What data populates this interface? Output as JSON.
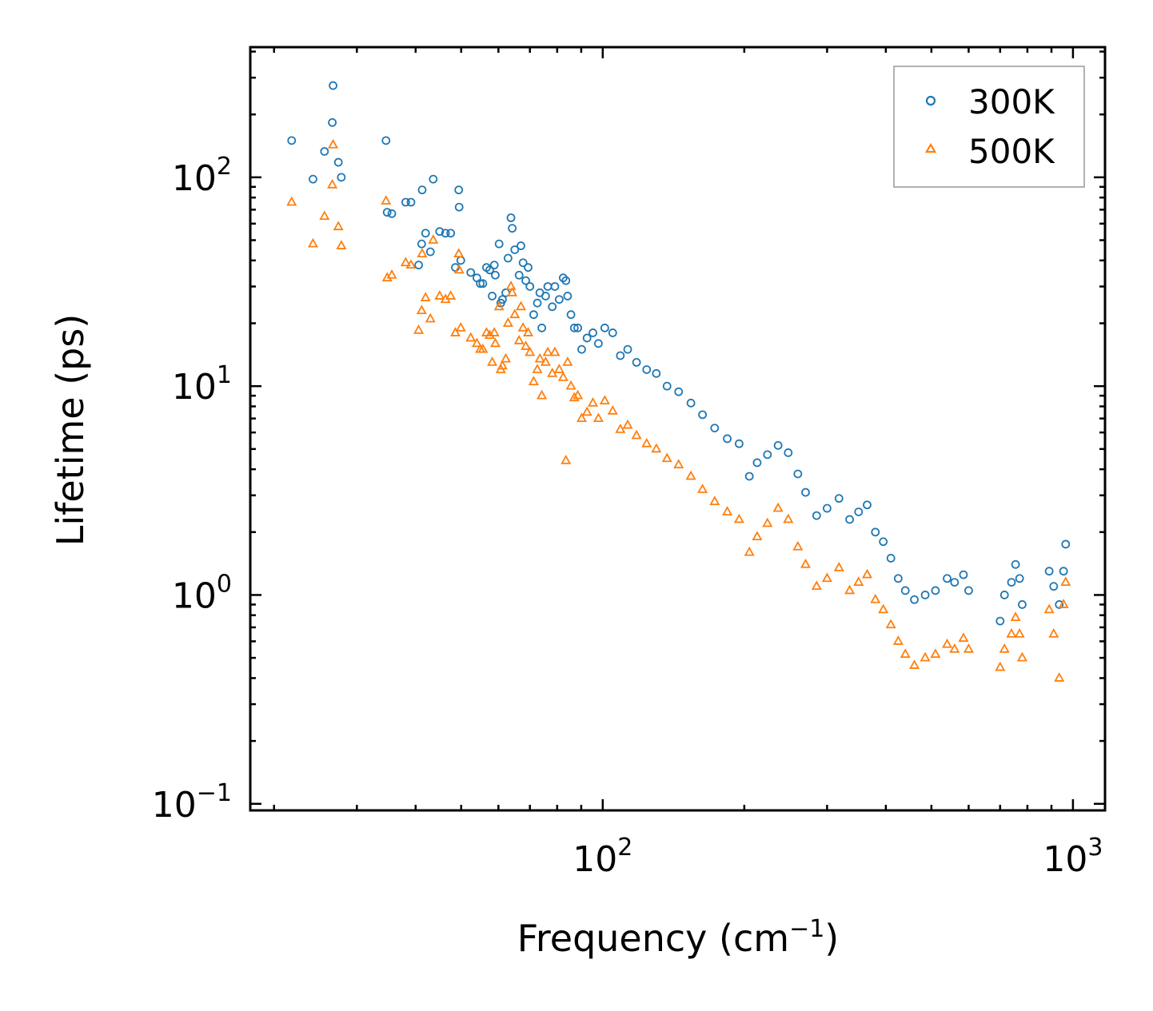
{
  "colors": {
    "series_300K": "#1f77b4",
    "series_500K": "#ff7f0e",
    "axes": "#000000",
    "legend_border": "#999999",
    "background": "#ffffff"
  },
  "chart_data": {
    "type": "scatter",
    "title": "",
    "xlabel_main": "Frequency (cm",
    "xlabel_sup": "−1",
    "xlabel_end": ")",
    "ylabel": "Lifetime (ps)",
    "xscale": "log",
    "yscale": "log",
    "xlim": [
      17.8,
      1170
    ],
    "ylim": [
      0.093,
      420
    ],
    "legend_position": "top-right",
    "x_ticks": [
      {
        "value": 100,
        "base": "10",
        "exp": "2"
      },
      {
        "value": 1000,
        "base": "10",
        "exp": "3"
      }
    ],
    "y_ticks": [
      {
        "value": 0.1,
        "base": "10",
        "exp": "−1"
      },
      {
        "value": 1,
        "base": "10",
        "exp": "0"
      },
      {
        "value": 10,
        "base": "10",
        "exp": "1"
      },
      {
        "value": 100,
        "base": "10",
        "exp": "2"
      }
    ],
    "series": [
      {
        "name": "300K",
        "marker": "circle",
        "color": "#1f77b4",
        "points": [
          [
            21.8,
            150
          ],
          [
            24.2,
            98
          ],
          [
            25.6,
            133
          ],
          [
            26.6,
            183
          ],
          [
            26.7,
            275
          ],
          [
            27.4,
            118
          ],
          [
            27.8,
            100
          ],
          [
            34.6,
            150
          ],
          [
            34.8,
            68
          ],
          [
            35.6,
            67
          ],
          [
            38.1,
            76
          ],
          [
            39.1,
            76
          ],
          [
            40.6,
            38
          ],
          [
            41.2,
            48
          ],
          [
            41.3,
            87
          ],
          [
            42,
            54
          ],
          [
            43,
            44
          ],
          [
            43.6,
            98
          ],
          [
            45,
            55
          ],
          [
            46.3,
            54
          ],
          [
            47.5,
            54
          ],
          [
            48.6,
            37
          ],
          [
            49.4,
            87
          ],
          [
            49.5,
            72
          ],
          [
            49.9,
            40
          ],
          [
            52.4,
            35
          ],
          [
            54,
            33
          ],
          [
            54.9,
            31
          ],
          [
            55.6,
            31
          ],
          [
            56.6,
            37
          ],
          [
            57.5,
            36
          ],
          [
            58.2,
            27
          ],
          [
            58.8,
            38
          ],
          [
            59.1,
            34
          ],
          [
            60.2,
            48
          ],
          [
            60.7,
            25
          ],
          [
            61.2,
            26
          ],
          [
            62.2,
            28
          ],
          [
            62.9,
            41
          ],
          [
            63.8,
            64
          ],
          [
            64.2,
            57
          ],
          [
            65,
            45
          ],
          [
            66.4,
            34
          ],
          [
            67,
            47
          ],
          [
            67.7,
            39
          ],
          [
            68.6,
            32
          ],
          [
            69.4,
            37
          ],
          [
            70,
            30
          ],
          [
            71.3,
            22
          ],
          [
            72.6,
            25
          ],
          [
            73.5,
            28
          ],
          [
            74.2,
            19
          ],
          [
            75.6,
            27
          ],
          [
            76.4,
            30
          ],
          [
            78.1,
            24
          ],
          [
            79.1,
            30
          ],
          [
            80.8,
            26
          ],
          [
            82.4,
            33
          ],
          [
            83.5,
            32
          ],
          [
            84.2,
            27
          ],
          [
            85.6,
            22
          ],
          [
            87,
            19
          ],
          [
            88.5,
            19
          ],
          [
            90.2,
            15
          ],
          [
            92.6,
            17
          ],
          [
            95.3,
            18
          ],
          [
            97.9,
            16
          ],
          [
            101,
            19
          ],
          [
            105,
            18
          ],
          [
            109,
            14
          ],
          [
            113,
            15
          ],
          [
            118,
            13
          ],
          [
            124,
            12
          ],
          [
            130,
            11.5
          ],
          [
            137,
            10
          ],
          [
            145,
            9.4
          ],
          [
            154,
            8.3
          ],
          [
            163,
            7.3
          ],
          [
            173,
            6.3
          ],
          [
            184,
            5.6
          ],
          [
            195,
            5.3
          ],
          [
            205,
            3.7
          ],
          [
            213,
            4.3
          ],
          [
            224,
            4.7
          ],
          [
            236,
            5.2
          ],
          [
            248,
            4.8
          ],
          [
            260,
            3.8
          ],
          [
            270,
            3.1
          ],
          [
            285,
            2.4
          ],
          [
            300,
            2.6
          ],
          [
            318,
            2.9
          ],
          [
            335,
            2.3
          ],
          [
            350,
            2.5
          ],
          [
            365,
            2.7
          ],
          [
            380,
            2.0
          ],
          [
            395,
            1.8
          ],
          [
            410,
            1.5
          ],
          [
            425,
            1.2
          ],
          [
            440,
            1.05
          ],
          [
            460,
            0.95
          ],
          [
            485,
            1.0
          ],
          [
            510,
            1.05
          ],
          [
            540,
            1.2
          ],
          [
            560,
            1.15
          ],
          [
            585,
            1.25
          ],
          [
            600,
            1.05
          ],
          [
            700,
            0.75
          ],
          [
            715,
            1.0
          ],
          [
            740,
            1.15
          ],
          [
            755,
            1.4
          ],
          [
            770,
            1.2
          ],
          [
            780,
            0.9
          ],
          [
            890,
            1.3
          ],
          [
            910,
            1.1
          ],
          [
            935,
            0.9
          ],
          [
            955,
            1.3
          ],
          [
            965,
            1.75
          ]
        ]
      },
      {
        "name": "500K",
        "marker": "triangle",
        "color": "#ff7f0e",
        "points": [
          [
            21.8,
            76
          ],
          [
            24.2,
            48
          ],
          [
            25.6,
            65
          ],
          [
            26.6,
            92
          ],
          [
            26.7,
            143
          ],
          [
            27.4,
            58
          ],
          [
            27.8,
            47
          ],
          [
            34.6,
            77
          ],
          [
            34.8,
            33
          ],
          [
            35.6,
            34
          ],
          [
            38.1,
            39
          ],
          [
            39.1,
            38
          ],
          [
            40.6,
            18.5
          ],
          [
            41.2,
            23
          ],
          [
            41.3,
            43
          ],
          [
            42,
            26.5
          ],
          [
            43,
            21
          ],
          [
            43.6,
            50
          ],
          [
            45,
            27
          ],
          [
            46.3,
            26
          ],
          [
            47.5,
            27
          ],
          [
            48.6,
            18
          ],
          [
            49.4,
            43
          ],
          [
            49.5,
            36
          ],
          [
            49.9,
            19
          ],
          [
            52.4,
            17
          ],
          [
            54,
            16
          ],
          [
            54.9,
            15
          ],
          [
            55.6,
            15
          ],
          [
            56.6,
            18
          ],
          [
            57.5,
            17.5
          ],
          [
            58.2,
            13
          ],
          [
            58.8,
            18
          ],
          [
            59.1,
            16
          ],
          [
            60.2,
            24
          ],
          [
            60.7,
            12
          ],
          [
            61.2,
            12.5
          ],
          [
            62.2,
            13.5
          ],
          [
            62.9,
            20
          ],
          [
            63.8,
            30
          ],
          [
            64.2,
            28
          ],
          [
            65,
            22
          ],
          [
            66.4,
            16.5
          ],
          [
            67,
            24
          ],
          [
            67.7,
            19
          ],
          [
            68.6,
            15.5
          ],
          [
            69.4,
            18
          ],
          [
            70,
            14.5
          ],
          [
            71.3,
            10.5
          ],
          [
            72.6,
            12
          ],
          [
            73.5,
            13.5
          ],
          [
            74.2,
            9.0
          ],
          [
            75.6,
            13
          ],
          [
            76.4,
            14.5
          ],
          [
            78.1,
            11.5
          ],
          [
            79.1,
            14.5
          ],
          [
            80.8,
            12
          ],
          [
            82.4,
            11
          ],
          [
            83.5,
            4.4
          ],
          [
            84.2,
            13
          ],
          [
            85.6,
            10
          ],
          [
            87,
            8.8
          ],
          [
            88.5,
            9
          ],
          [
            90.2,
            7
          ],
          [
            92.6,
            7.5
          ],
          [
            95.3,
            8.3
          ],
          [
            97.9,
            7
          ],
          [
            101,
            8.5
          ],
          [
            105,
            7.6
          ],
          [
            109,
            6.2
          ],
          [
            113,
            6.5
          ],
          [
            118,
            5.8
          ],
          [
            124,
            5.3
          ],
          [
            130,
            5.0
          ],
          [
            137,
            4.5
          ],
          [
            145,
            4.2
          ],
          [
            154,
            3.7
          ],
          [
            163,
            3.2
          ],
          [
            173,
            2.8
          ],
          [
            184,
            2.5
          ],
          [
            195,
            2.3
          ],
          [
            205,
            1.6
          ],
          [
            213,
            1.9
          ],
          [
            224,
            2.2
          ],
          [
            236,
            2.6
          ],
          [
            248,
            2.3
          ],
          [
            260,
            1.7
          ],
          [
            270,
            1.4
          ],
          [
            285,
            1.1
          ],
          [
            300,
            1.2
          ],
          [
            318,
            1.35
          ],
          [
            335,
            1.05
          ],
          [
            350,
            1.15
          ],
          [
            365,
            1.25
          ],
          [
            380,
            0.95
          ],
          [
            395,
            0.85
          ],
          [
            410,
            0.72
          ],
          [
            425,
            0.6
          ],
          [
            440,
            0.52
          ],
          [
            460,
            0.46
          ],
          [
            485,
            0.5
          ],
          [
            510,
            0.52
          ],
          [
            540,
            0.58
          ],
          [
            560,
            0.55
          ],
          [
            585,
            0.62
          ],
          [
            600,
            0.55
          ],
          [
            700,
            0.45
          ],
          [
            715,
            0.55
          ],
          [
            740,
            0.65
          ],
          [
            755,
            0.78
          ],
          [
            770,
            0.65
          ],
          [
            780,
            0.5
          ],
          [
            890,
            0.85
          ],
          [
            910,
            0.65
          ],
          [
            935,
            0.4
          ],
          [
            955,
            0.9
          ],
          [
            965,
            1.15
          ]
        ]
      }
    ]
  }
}
